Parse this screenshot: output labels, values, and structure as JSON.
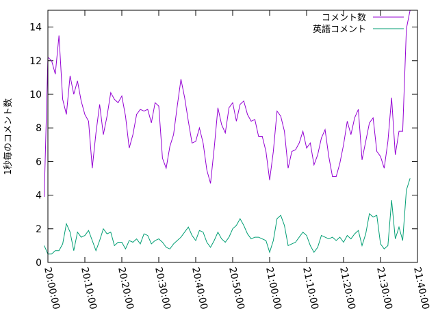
{
  "chart_data": {
    "type": "line",
    "title": "",
    "xlabel": "",
    "ylabel": "1秒毎のコメント数",
    "xlim": [
      "20:00:00",
      "21:40:00"
    ],
    "ylim": [
      0,
      15
    ],
    "grid": false,
    "legend_position": "top-right",
    "x_ticks": [
      "20:00:00",
      "20:10:00",
      "20:20:00",
      "20:30:00",
      "20:40:00",
      "20:50:00",
      "21:00:00",
      "21:10:00",
      "21:20:00",
      "21:30:00",
      "21:40:00"
    ],
    "y_ticks": [
      0,
      2,
      4,
      6,
      8,
      10,
      12,
      14
    ],
    "x_start": "19:59:00",
    "x_step_minutes": 1,
    "series": [
      {
        "name": "コメント数",
        "color": "#9400d3",
        "values": [
          3.9,
          12.2,
          12.0,
          11.2,
          13.5,
          9.7,
          8.8,
          11.1,
          10.0,
          10.8,
          9.6,
          8.8,
          8.4,
          5.6,
          7.7,
          9.4,
          7.6,
          8.7,
          10.1,
          9.7,
          9.5,
          9.9,
          8.7,
          6.8,
          7.6,
          8.8,
          9.1,
          9.0,
          9.1,
          8.3,
          9.5,
          9.3,
          6.2,
          5.6,
          6.9,
          7.6,
          9.3,
          10.9,
          9.8,
          8.4,
          7.1,
          7.2,
          8.0,
          7.1,
          5.5,
          4.7,
          6.8,
          9.2,
          8.2,
          7.7,
          9.2,
          9.5,
          8.4,
          9.4,
          9.6,
          8.8,
          8.4,
          8.5,
          7.5,
          7.5,
          6.6,
          4.9,
          6.6,
          9.0,
          8.7,
          7.8,
          5.6,
          6.6,
          6.7,
          7.1,
          7.8,
          6.8,
          7.1,
          5.8,
          6.4,
          7.4,
          7.9,
          6.3,
          5.1,
          5.1,
          5.9,
          7.0,
          8.4,
          7.6,
          8.6,
          9.1,
          6.1,
          7.2,
          8.3,
          8.6,
          6.6,
          6.3,
          5.6,
          7.2,
          9.8,
          6.4,
          7.8,
          7.8,
          13.9,
          15.0
        ]
      },
      {
        "name": "英語コメント",
        "color": "#009e73",
        "values": [
          1.0,
          0.5,
          0.5,
          0.7,
          0.7,
          1.1,
          2.3,
          1.8,
          0.7,
          1.8,
          1.5,
          1.6,
          1.9,
          1.3,
          0.7,
          1.3,
          2.0,
          1.7,
          1.8,
          1.0,
          1.2,
          1.2,
          0.8,
          1.3,
          1.2,
          1.4,
          1.1,
          1.7,
          1.6,
          1.1,
          1.3,
          1.4,
          1.2,
          0.9,
          0.8,
          1.1,
          1.3,
          1.5,
          1.8,
          2.1,
          1.6,
          1.3,
          1.9,
          1.8,
          1.2,
          0.9,
          1.3,
          1.8,
          1.4,
          1.2,
          1.5,
          2.0,
          2.2,
          2.6,
          2.2,
          1.7,
          1.4,
          1.5,
          1.5,
          1.4,
          1.3,
          0.6,
          1.3,
          2.6,
          2.8,
          2.2,
          1.0,
          1.1,
          1.2,
          1.5,
          1.8,
          1.6,
          1.0,
          0.6,
          0.9,
          1.6,
          1.5,
          1.4,
          1.5,
          1.3,
          1.5,
          1.2,
          1.6,
          1.4,
          1.7,
          1.9,
          1.0,
          1.7,
          2.9,
          2.7,
          2.8,
          1.1,
          0.8,
          1.0,
          3.7,
          1.4,
          2.1,
          1.3,
          4.3,
          5.0
        ]
      }
    ]
  }
}
